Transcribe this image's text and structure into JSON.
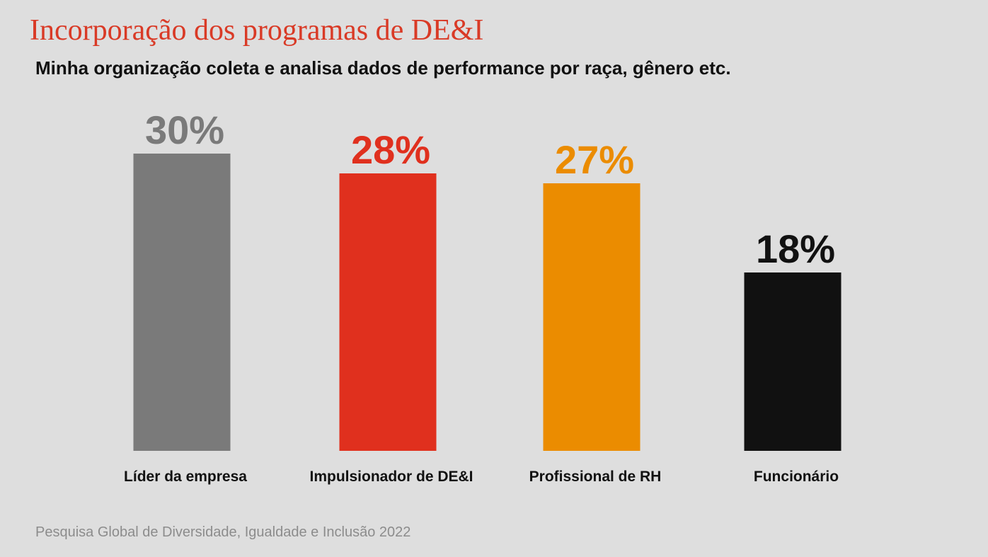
{
  "title": "Incorporação dos programas de DE&I",
  "subtitle": "Minha organização coleta e analisa dados de performance por raça, gênero etc.",
  "source": "Pesquisa Global de Diversidade, Igualdade e Inclusão 2022",
  "chart_data": {
    "type": "bar",
    "categories": [
      "Líder da empresa",
      "Impulsionador de DE&I",
      "Profissional de RH",
      "Funcionário"
    ],
    "values": [
      30,
      28,
      27,
      18
    ],
    "value_labels": [
      "30%",
      "28%",
      "27%",
      "18%"
    ],
    "colors": [
      "#7a7a7a",
      "#e0301e",
      "#eb8c00",
      "#111111"
    ],
    "ylim": [
      0,
      30
    ],
    "grid": false
  }
}
